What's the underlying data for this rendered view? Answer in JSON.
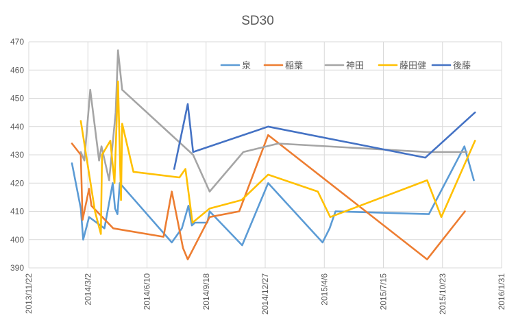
{
  "chart_data": {
    "type": "line",
    "title": "SD30",
    "xlabel": "",
    "ylabel": "",
    "ylim": [
      390,
      470
    ],
    "yticks": [
      390,
      400,
      410,
      420,
      430,
      440,
      450,
      460,
      470
    ],
    "xticks": [
      {
        "date": "2013-11-22",
        "label": "2013/11/22"
      },
      {
        "date": "2014-03-02",
        "label": "2014/3/2"
      },
      {
        "date": "2014-06-10",
        "label": "2014/6/10"
      },
      {
        "date": "2014-09-18",
        "label": "2014/9/18"
      },
      {
        "date": "2014-12-27",
        "label": "2014/12/27"
      },
      {
        "date": "2015-04-06",
        "label": "2015/4/6"
      },
      {
        "date": "2015-07-15",
        "label": "2015/7/15"
      },
      {
        "date": "2015-10-23",
        "label": "2015/10/23"
      },
      {
        "date": "2016-01-31",
        "label": "2016/1/31"
      }
    ],
    "legend_position": "top-right",
    "series": [
      {
        "name": "泉",
        "color": "#5b9bd5",
        "points": [
          [
            "2014-02-03",
            427
          ],
          [
            "2014-02-18",
            411
          ],
          [
            "2014-02-22",
            400
          ],
          [
            "2014-03-04",
            408
          ],
          [
            "2014-03-30",
            404
          ],
          [
            "2014-04-13",
            420
          ],
          [
            "2014-04-17",
            411
          ],
          [
            "2014-04-21",
            409
          ],
          [
            "2014-04-25",
            420
          ],
          [
            "2014-07-22",
            399
          ],
          [
            "2014-08-08",
            404
          ],
          [
            "2014-08-19",
            412
          ],
          [
            "2014-08-25",
            405
          ],
          [
            "2014-08-30",
            406
          ],
          [
            "2014-09-20",
            406
          ],
          [
            "2014-09-24",
            410
          ],
          [
            "2014-11-18",
            398
          ],
          [
            "2015-01-01",
            420
          ],
          [
            "2015-04-03",
            399
          ],
          [
            "2015-04-15",
            404
          ],
          [
            "2015-04-25",
            410
          ],
          [
            "2015-09-30",
            409
          ],
          [
            "2015-11-29",
            433
          ],
          [
            "2015-12-15",
            421
          ]
        ]
      },
      {
        "name": "稲葉",
        "color": "#ed7d31",
        "points": [
          [
            "2014-02-03",
            434
          ],
          [
            "2014-02-18",
            430
          ],
          [
            "2014-02-21",
            407
          ],
          [
            "2014-03-04",
            418
          ],
          [
            "2014-03-08",
            412
          ],
          [
            "2014-04-14",
            404
          ],
          [
            "2014-07-08",
            401
          ],
          [
            "2014-07-22",
            417
          ],
          [
            "2014-08-10",
            397
          ],
          [
            "2014-08-18",
            393
          ],
          [
            "2014-09-24",
            408
          ],
          [
            "2014-11-13",
            410
          ],
          [
            "2015-01-01",
            437
          ],
          [
            "2015-09-27",
            393
          ],
          [
            "2015-11-30",
            410
          ]
        ]
      },
      {
        "name": "神田",
        "color": "#a5a5a5",
        "points": [
          [
            "2014-02-18",
            431
          ],
          [
            "2014-02-24",
            428
          ],
          [
            "2014-03-06",
            453
          ],
          [
            "2014-03-21",
            428
          ],
          [
            "2014-03-25",
            433
          ],
          [
            "2014-04-07",
            421
          ],
          [
            "2014-04-18",
            445
          ],
          [
            "2014-04-22",
            467
          ],
          [
            "2014-04-29",
            453
          ],
          [
            "2014-08-27",
            430
          ],
          [
            "2014-09-24",
            417
          ],
          [
            "2014-11-20",
            431
          ],
          [
            "2015-01-18",
            434
          ],
          [
            "2015-09-27",
            431
          ],
          [
            "2015-12-03",
            431
          ]
        ]
      },
      {
        "name": "藤田健",
        "color": "#ffc000",
        "points": [
          [
            "2014-02-18",
            442
          ],
          [
            "2014-03-14",
            410
          ],
          [
            "2014-03-24",
            402
          ],
          [
            "2014-03-26",
            430
          ],
          [
            "2014-04-09",
            435
          ],
          [
            "2014-04-16",
            420
          ],
          [
            "2014-04-22",
            456
          ],
          [
            "2014-04-27",
            414
          ],
          [
            "2014-04-29",
            441
          ],
          [
            "2014-05-18",
            424
          ],
          [
            "2014-08-04",
            422
          ],
          [
            "2014-08-14",
            425
          ],
          [
            "2014-08-26",
            406
          ],
          [
            "2014-09-24",
            411
          ],
          [
            "2014-11-17",
            414
          ],
          [
            "2015-01-01",
            423
          ],
          [
            "2015-03-26",
            417
          ],
          [
            "2015-04-16",
            408
          ],
          [
            "2015-09-27",
            421
          ],
          [
            "2015-10-21",
            408
          ],
          [
            "2015-12-17",
            435
          ]
        ]
      },
      {
        "name": "後藤",
        "color": "#4472c4",
        "points": [
          [
            "2014-07-26",
            425
          ],
          [
            "2014-08-18",
            448
          ],
          [
            "2014-08-27",
            431
          ],
          [
            "2015-01-01",
            440
          ],
          [
            "2015-09-24",
            429
          ],
          [
            "2015-12-17",
            445
          ]
        ]
      }
    ]
  }
}
